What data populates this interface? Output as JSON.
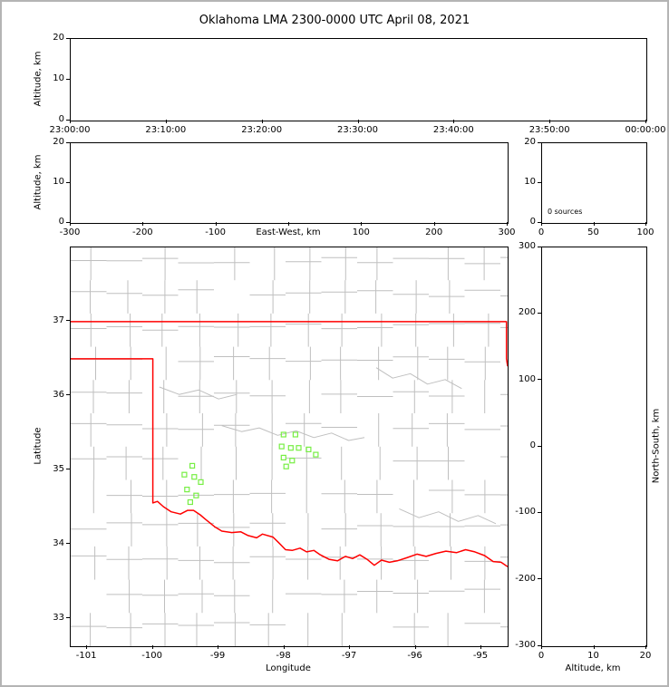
{
  "title": "Oklahoma LMA 2300-0000 UTC April 08, 2021",
  "colors": {
    "background": "#ffffff",
    "frame_border": "#b4b4b4",
    "axis": "#000000",
    "state_border": "#ff0000",
    "county_line": "#bfbfbf",
    "station_marker": "#77ee44"
  },
  "panels": {
    "time_height": {
      "ylabel": "Altitude, km",
      "yticks": [
        "20",
        "10",
        "0"
      ],
      "xticks": [
        "23:00:00",
        "23:10:00",
        "23:20:00",
        "23:30:00",
        "23:40:00",
        "23:50:00",
        "00:00:00"
      ]
    },
    "ew_height": {
      "ylabel": "Altitude, km",
      "xlabel": "East-West, km",
      "yticks": [
        "20",
        "10",
        "0"
      ],
      "xticks": [
        "-300",
        "-200",
        "-100",
        "",
        "100",
        "200",
        "300"
      ]
    },
    "histogram": {
      "annotation": "0 sources",
      "yticks": [
        "20",
        "10",
        "0"
      ],
      "xticks": [
        "0",
        "50",
        "100"
      ]
    },
    "map": {
      "xlabel": "Longitude",
      "ylabel": "Latitude"
    },
    "ns_height": {
      "ylabel": "North-South, km",
      "xlabel": "Altitude, km"
    }
  },
  "chart_data": {
    "type": "scatter",
    "title": "Oklahoma LMA 2300-0000 UTC April 08, 2021",
    "source_count": 0,
    "time_panel": {
      "xlim": [
        "23:00:00",
        "00:00:00"
      ],
      "ylim": [
        0,
        20
      ],
      "points": []
    },
    "ew_panel": {
      "xlim": [
        -300,
        300
      ],
      "ylim": [
        0,
        20
      ],
      "points": []
    },
    "ns_panel": {
      "xlim": [
        0,
        20
      ],
      "ylim": [
        -300,
        300
      ],
      "xticks": [
        0,
        10,
        20
      ],
      "yticks": [
        300,
        200,
        100,
        0,
        -100,
        -200,
        -300
      ],
      "points": []
    },
    "histogram_panel": {
      "xlim": [
        0,
        100
      ],
      "annotation": "0 sources",
      "values": []
    },
    "map_panel": {
      "xlabel": "Longitude",
      "ylabel": "Latitude",
      "lon_range": [
        -101.25,
        -94.6
      ],
      "lat_range": [
        32.63,
        38.0
      ],
      "xticks": [
        -101,
        -100,
        -99,
        -98,
        -97,
        -96,
        -95
      ],
      "yticks": [
        37,
        36,
        35,
        34,
        33
      ]
    },
    "stations": {
      "marker": "open-square",
      "color": "#77ee44",
      "points": [
        [
          -98.01,
          35.48
        ],
        [
          -97.83,
          35.48
        ],
        [
          -98.04,
          35.32
        ],
        [
          -97.9,
          35.3
        ],
        [
          -97.78,
          35.3
        ],
        [
          -97.63,
          35.28
        ],
        [
          -98.01,
          35.17
        ],
        [
          -97.88,
          35.13
        ],
        [
          -97.97,
          35.05
        ],
        [
          -97.52,
          35.21
        ],
        [
          -99.4,
          35.06
        ],
        [
          -99.52,
          34.94
        ],
        [
          -99.37,
          34.91
        ],
        [
          -99.27,
          34.84
        ],
        [
          -99.48,
          34.74
        ],
        [
          -99.34,
          34.66
        ],
        [
          -99.43,
          34.57
        ]
      ]
    },
    "state_outline": [
      [
        [
          -101.25,
          37.0
        ],
        [
          -94.618,
          37.0
        ],
        [
          -94.618,
          36.5
        ],
        [
          -94.6,
          36.4
        ]
      ],
      [
        [
          -101.25,
          36.5
        ],
        [
          -100.0,
          36.5
        ],
        [
          -100.0,
          34.56
        ],
        [
          -99.93,
          34.58
        ],
        [
          -99.84,
          34.51
        ],
        [
          -99.72,
          34.44
        ],
        [
          -99.58,
          34.41
        ],
        [
          -99.47,
          34.46
        ],
        [
          -99.38,
          34.46
        ],
        [
          -99.28,
          34.4
        ],
        [
          -99.2,
          34.34
        ],
        [
          -99.06,
          34.24
        ],
        [
          -98.95,
          34.18
        ],
        [
          -98.8,
          34.16
        ],
        [
          -98.66,
          34.17
        ],
        [
          -98.55,
          34.12
        ],
        [
          -98.42,
          34.09
        ],
        [
          -98.33,
          34.14
        ],
        [
          -98.17,
          34.1
        ],
        [
          -98.09,
          34.03
        ],
        [
          -97.98,
          33.93
        ],
        [
          -97.88,
          33.92
        ],
        [
          -97.76,
          33.95
        ],
        [
          -97.66,
          33.9
        ],
        [
          -97.55,
          33.92
        ],
        [
          -97.45,
          33.86
        ],
        [
          -97.32,
          33.8
        ],
        [
          -97.19,
          33.78
        ],
        [
          -97.07,
          33.84
        ],
        [
          -96.96,
          33.81
        ],
        [
          -96.85,
          33.86
        ],
        [
          -96.74,
          33.8
        ],
        [
          -96.63,
          33.72
        ],
        [
          -96.52,
          33.79
        ],
        [
          -96.4,
          33.76
        ],
        [
          -96.28,
          33.78
        ],
        [
          -96.14,
          33.82
        ],
        [
          -95.98,
          33.87
        ],
        [
          -95.84,
          33.84
        ],
        [
          -95.69,
          33.88
        ],
        [
          -95.54,
          33.91
        ],
        [
          -95.38,
          33.89
        ],
        [
          -95.24,
          33.93
        ],
        [
          -95.1,
          33.9
        ],
        [
          -94.95,
          33.85
        ],
        [
          -94.82,
          33.77
        ],
        [
          -94.7,
          33.76
        ],
        [
          -94.6,
          33.7
        ]
      ]
    ],
    "county_rivers": [
      [
        [
          -98.95,
          35.6
        ],
        [
          -98.65,
          35.52
        ],
        [
          -98.38,
          35.57
        ],
        [
          -98.1,
          35.47
        ],
        [
          -97.82,
          35.53
        ],
        [
          -97.55,
          35.44
        ],
        [
          -97.28,
          35.5
        ],
        [
          -97.02,
          35.4
        ],
        [
          -96.78,
          35.44
        ]
      ],
      [
        [
          -96.6,
          36.38
        ],
        [
          -96.35,
          36.24
        ],
        [
          -96.08,
          36.3
        ],
        [
          -95.82,
          36.16
        ],
        [
          -95.55,
          36.22
        ],
        [
          -95.3,
          36.1
        ]
      ],
      [
        [
          -96.25,
          34.48
        ],
        [
          -95.95,
          34.36
        ],
        [
          -95.65,
          34.44
        ],
        [
          -95.35,
          34.31
        ],
        [
          -95.05,
          34.39
        ],
        [
          -94.78,
          34.28
        ]
      ],
      [
        [
          -99.9,
          36.12
        ],
        [
          -99.6,
          36.02
        ],
        [
          -99.3,
          36.08
        ],
        [
          -99.0,
          35.96
        ],
        [
          -98.72,
          36.02
        ]
      ]
    ],
    "county_grid": {
      "lon_step": 0.545,
      "lat_step": 0.448,
      "col_offset": 0.33,
      "row_offset": 0.27,
      "jitter": 0.05,
      "skip": 0.16,
      "seed": 20210408
    }
  }
}
